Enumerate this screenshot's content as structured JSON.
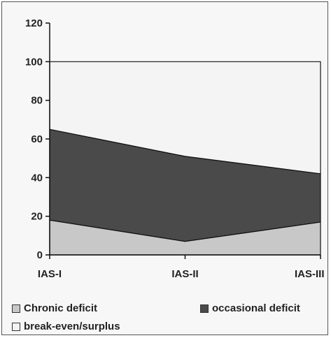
{
  "chart_data": {
    "type": "area",
    "stacked": true,
    "categories": [
      "IAS-I",
      "IAS-II",
      "IAS-III"
    ],
    "series": [
      {
        "name": "Chronic deficit",
        "values": [
          18,
          7,
          17
        ],
        "color": "#c8c8c8"
      },
      {
        "name": "occasional deficit",
        "values": [
          47,
          44,
          25
        ],
        "color": "#4a4a4a"
      },
      {
        "name": "break-even/surplus",
        "values": [
          35,
          49,
          58
        ],
        "color": "#f4f4f4"
      }
    ],
    "y_ticks": [
      "0",
      "20",
      "40",
      "60",
      "80",
      "100",
      "120"
    ],
    "ylim": [
      0,
      120
    ],
    "title": "",
    "xlabel": "",
    "ylabel": "",
    "grid": false,
    "legend_position": "bottom"
  }
}
